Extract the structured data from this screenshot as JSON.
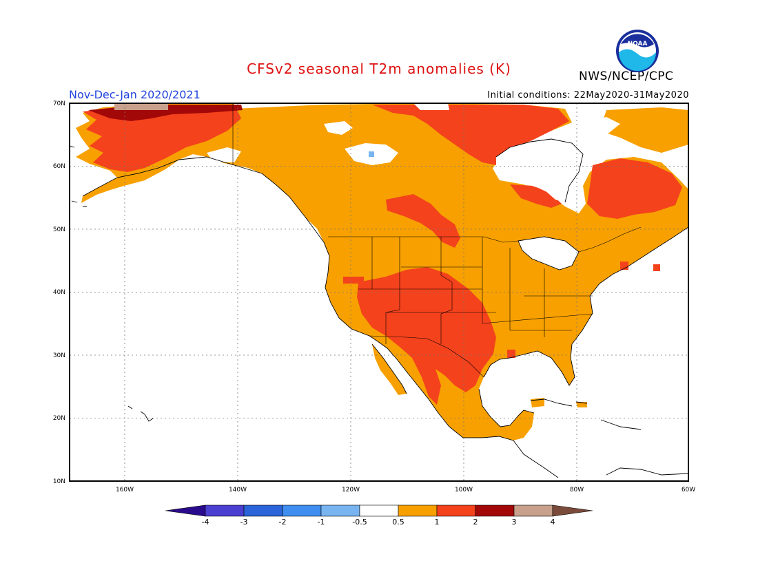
{
  "header": {
    "title": "CFSv2 seasonal T2m anomalies (K)",
    "agency": "NWS/NCEP/CPC",
    "season": "Nov-Dec-Jan 2020/2021",
    "initial_conditions": "Initial conditions: 22May2020-31May2020",
    "logo_text": "NOAA"
  },
  "map": {
    "lat_labels": [
      "70N",
      "60N",
      "50N",
      "40N",
      "30N",
      "20N",
      "10N"
    ],
    "lon_labels": [
      "160W",
      "140W",
      "120W",
      "100W",
      "80W",
      "60W"
    ]
  },
  "legend": {
    "colors": [
      "#2a0a8c",
      "#4a3fd0",
      "#2a64d8",
      "#3f8ef0",
      "#78b4f0",
      "#ffffff",
      "#f7a000",
      "#f4421c",
      "#a30808",
      "#c8a08c",
      "#7a4a3a"
    ],
    "tick_labels": [
      "-4",
      "-3",
      "-2",
      "-1",
      "-0.5",
      "0.5",
      "1",
      "2",
      "3",
      "4"
    ]
  }
}
